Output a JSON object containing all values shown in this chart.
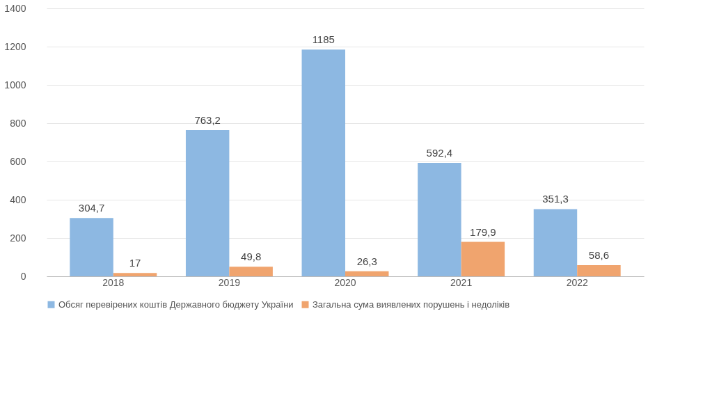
{
  "chart_data": {
    "type": "bar",
    "categories": [
      "2018",
      "2019",
      "2020",
      "2021",
      "2022"
    ],
    "series": [
      {
        "name": "Обсяг перевірених коштів Державного бюджету України",
        "color": "#8db8e2",
        "values": [
          304.7,
          763.2,
          1185,
          592.4,
          351.3
        ],
        "value_labels": [
          "304,7",
          "763,2",
          "1185",
          "592,4",
          "351,3"
        ]
      },
      {
        "name": "Загальна сума виявлених порушень і недоліків",
        "color": "#f0a46e",
        "values": [
          17,
          49.8,
          26.3,
          179.9,
          58.6
        ],
        "value_labels": [
          "17",
          "49,8",
          "26,3",
          "179,9",
          "58,6"
        ]
      }
    ],
    "ylim": [
      0,
      1400
    ],
    "yticks": [
      0,
      200,
      400,
      600,
      800,
      1000,
      1200,
      1400
    ],
    "grid": "y",
    "legend": "bottom"
  }
}
